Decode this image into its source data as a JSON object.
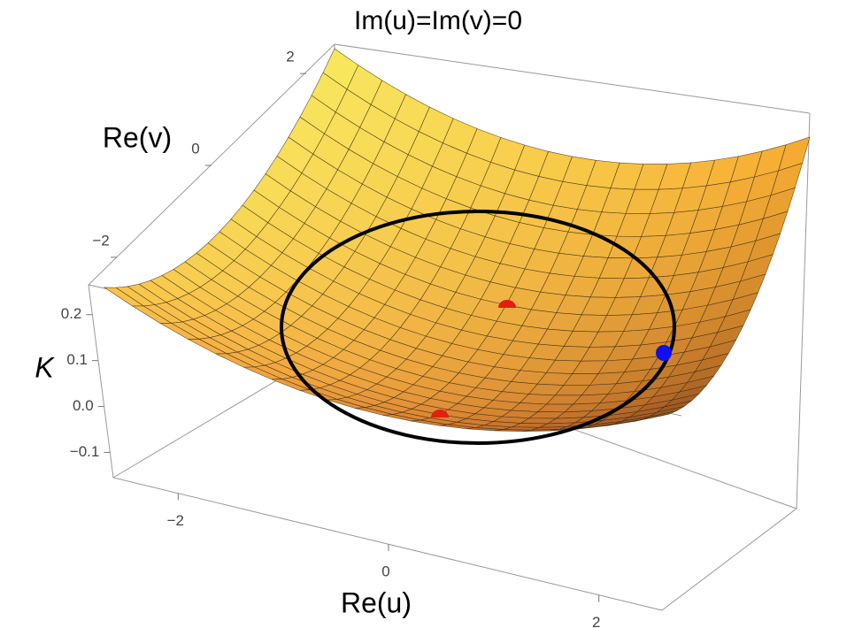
{
  "chart_data": {
    "type": "surface3d",
    "title": "Im(u)=Im(v)=0",
    "x_label": "Re(u)",
    "y_label": "Re(v)",
    "z_label": "K",
    "xlim": [
      -2.6,
      2.6
    ],
    "xticks": [
      {
        "value": -2,
        "label": "−2"
      },
      0,
      2
    ],
    "ylim": [
      -2.6,
      2.6
    ],
    "yticks": [
      {
        "value": -2,
        "label": "−2"
      },
      0,
      2
    ],
    "zlim": [
      -0.155,
      0.265
    ],
    "zticks": [
      {
        "value": -0.1,
        "label": "−0.1"
      },
      {
        "value": 0,
        "label": "0.0"
      },
      0.1,
      0.2
    ]
  }
}
